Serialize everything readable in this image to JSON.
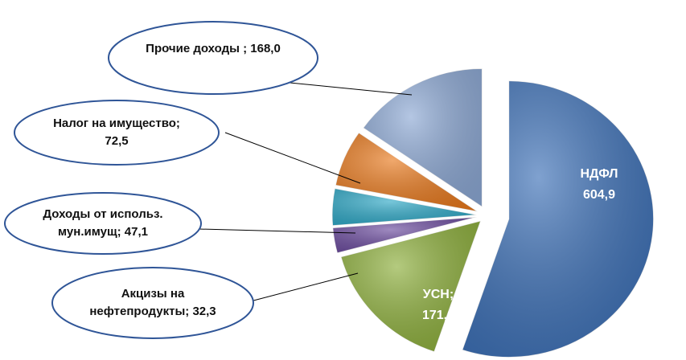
{
  "chart_data": {
    "type": "pie",
    "categories": [
      "НДФЛ",
      "УСН;",
      "Акцизы на нефтепродукты;",
      "Доходы от использ. мун.имущ;",
      "Налог на имущество;",
      "Прочие доходы ;"
    ],
    "values": [
      604.9,
      171.0,
      32.3,
      47.1,
      72.5,
      168.0
    ],
    "value_labels": [
      "604,9",
      "171,0",
      "32,3",
      "47,1",
      "72,5",
      "168,0"
    ],
    "colors": [
      "#3b6fb6",
      "#8cae3a",
      "#6b4b9e",
      "#2ea8c6",
      "#e8791d",
      "#8ca8d4"
    ]
  }
}
